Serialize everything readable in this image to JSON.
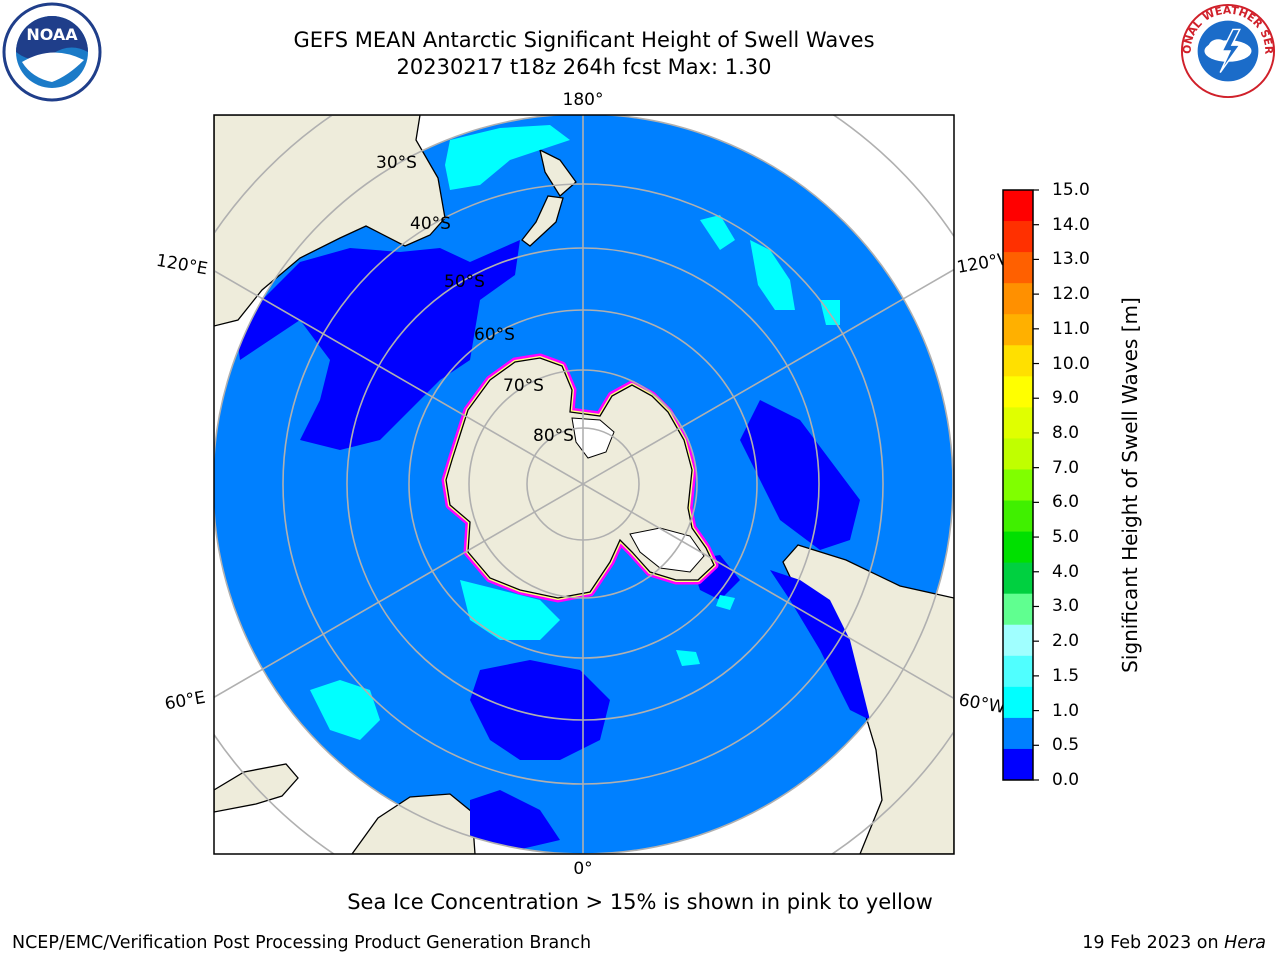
{
  "header": {
    "title_line1": "GEFS MEAN Antarctic Significant Height of Swell Waves",
    "title_line2": "20230217 t18z 264h fcst   Max: 1.30"
  },
  "map": {
    "projection": "south-polar-stereographic",
    "latitude_labels": [
      "30°S",
      "40°S",
      "50°S",
      "60°S",
      "70°S",
      "80°S"
    ],
    "longitude_labels": {
      "top": "180°",
      "bottom": "0°",
      "upper_left": "120°E",
      "lower_left": "60°E",
      "upper_right": "120°W",
      "lower_right": "60°W"
    },
    "colors": {
      "land": "#eeecdb",
      "ocean_base": "#0080ff",
      "low_swell": "#0000ff",
      "high_swell": "#00ffff",
      "grid": "#b0b0b0",
      "sea_ice_edge": [
        "#ff00ff",
        "#ffff00"
      ]
    }
  },
  "colorbar": {
    "label": "Significant Height of Swell Waves [m]",
    "ticks": [
      "15.0",
      "14.0",
      "13.0",
      "12.0",
      "11.0",
      "10.0",
      "9.0",
      "8.0",
      "7.0",
      "6.0",
      "5.0",
      "4.0",
      "3.0",
      "2.0",
      "1.5",
      "1.0",
      "0.5",
      "0.0"
    ],
    "colors": [
      "#ff0000",
      "#ff3000",
      "#ff6000",
      "#ff9000",
      "#ffb000",
      "#ffe000",
      "#ffff00",
      "#e0ff00",
      "#c0ff00",
      "#80ff00",
      "#40f000",
      "#00e000",
      "#00d040",
      "#60ff90",
      "#a0ffff",
      "#50ffff",
      "#00ffff",
      "#0080ff",
      "#0000ff"
    ]
  },
  "notes": {
    "sea_ice": "Sea Ice Concentration > 15% is shown in pink to yellow"
  },
  "footer": {
    "left": "NCEP/EMC/Verification Post Processing Product Generation Branch",
    "date": "19 Feb 2023 on ",
    "host": "Hera"
  },
  "logos": {
    "left": "NOAA",
    "right": "NATIONAL WEATHER SERVICE"
  }
}
